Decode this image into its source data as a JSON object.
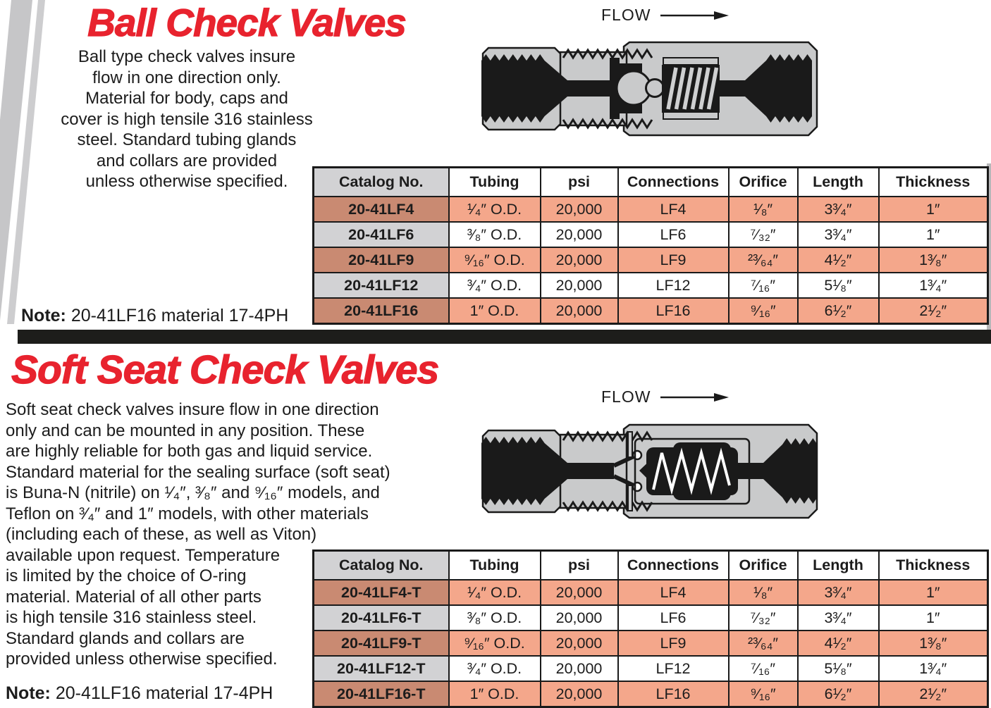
{
  "colors": {
    "accent_red": "#e8232e",
    "row_salmon": "#f4a78b",
    "row_salmon_dark": "#c98a72",
    "header_gray": "#d2d2d4",
    "bar_black": "#1d1d1b",
    "diagram_gray": "#c9cacb"
  },
  "ball": {
    "title": "Ball Check Valves",
    "flow_label": "FLOW",
    "para_lines": [
      "Ball type check valves insure",
      "flow in one direction only.",
      "Material for body, caps and",
      "cover is high tensile 316 stainless",
      "steel. Standard tubing glands",
      "and collars are provided",
      "unless otherwise specified."
    ],
    "note_label": "Note:",
    "note_text": "20-41LF16 material 17-4PH",
    "table": {
      "headers": [
        "Catalog No.",
        "Tubing",
        "psi",
        "Connections",
        "Orifice",
        "Length",
        "Thickness"
      ],
      "rows": [
        [
          "20-41LF4",
          "¹⁄₄″ O.D.",
          "20,000",
          "LF4",
          "¹⁄₈″",
          "3³⁄₄″",
          "1″"
        ],
        [
          "20-41LF6",
          "³⁄₈″ O.D.",
          "20,000",
          "LF6",
          "⁷⁄₃₂″",
          "3³⁄₄″",
          "1″"
        ],
        [
          "20-41LF9",
          "⁹⁄₁₆″ O.D.",
          "20,000",
          "LF9",
          "²³⁄₆₄″",
          "4¹⁄₂″",
          "1³⁄₈″"
        ],
        [
          "20-41LF12",
          "³⁄₄″ O.D.",
          "20,000",
          "LF12",
          "⁷⁄₁₆″",
          "5¹⁄₈″",
          "1³⁄₄″"
        ],
        [
          "20-41LF16",
          "1″ O.D.",
          "20,000",
          "LF16",
          "⁹⁄₁₆″",
          "6¹⁄₂″",
          "2¹⁄₂″"
        ]
      ]
    }
  },
  "soft": {
    "title": "Soft Seat Check Valves",
    "flow_label": "FLOW",
    "para_lines": [
      "Soft seat check valves insure flow in one direction",
      "only and can be mounted in any position. These",
      "are highly reliable for both gas and liquid service.",
      "Standard material for the sealing surface (soft seat)",
      "is Buna-N (nitrile) on ¹⁄₄″, ³⁄₈″ and ⁹⁄₁₆″ models, and",
      "Teflon on ³⁄₄″ and 1″ models, with other materials",
      "(including each of these, as well as Viton)",
      "available upon request. Temperature",
      "is limited by the choice of O-ring",
      "material. Material of all other parts",
      "is high tensile 316 stainless steel.",
      "Standard glands and collars are",
      "provided unless otherwise specified."
    ],
    "note_label": "Note:",
    "note_text": "20-41LF16 material 17-4PH",
    "table": {
      "headers": [
        "Catalog No.",
        "Tubing",
        "psi",
        "Connections",
        "Orifice",
        "Length",
        "Thickness"
      ],
      "rows": [
        [
          "20-41LF4-T",
          "¹⁄₄″ O.D.",
          "20,000",
          "LF4",
          "¹⁄₈″",
          "3³⁄₄″",
          "1″"
        ],
        [
          "20-41LF6-T",
          "³⁄₈″ O.D.",
          "20,000",
          "LF6",
          "⁷⁄₃₂″",
          "3³⁄₄″",
          "1″"
        ],
        [
          "20-41LF9-T",
          "⁹⁄₁₆″ O.D.",
          "20,000",
          "LF9",
          "²³⁄₆₄″",
          "4¹⁄₂″",
          "1³⁄₈″"
        ],
        [
          "20-41LF12-T",
          "³⁄₄″ O.D.",
          "20,000",
          "LF12",
          "⁷⁄₁₆″",
          "5¹⁄₈″",
          "1³⁄₄″"
        ],
        [
          "20-41LF16-T",
          "1″ O.D.",
          "20,000",
          "LF16",
          "⁹⁄₁₆″",
          "6¹⁄₂″",
          "2¹⁄₂″"
        ]
      ]
    }
  }
}
